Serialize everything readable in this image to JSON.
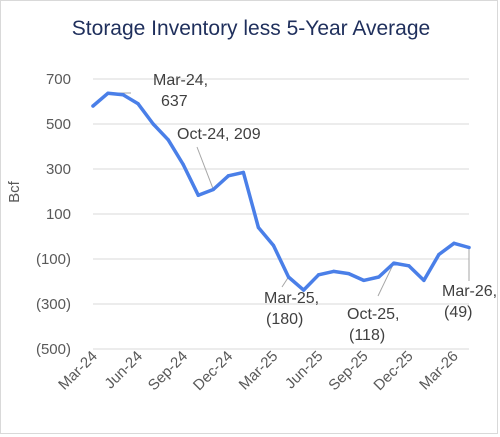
{
  "chart_data": {
    "type": "line",
    "title": "Storage Inventory less 5-Year Average",
    "ylabel": "Bcf",
    "xlabel": "",
    "ylim": [
      -500,
      700
    ],
    "yticks": [
      {
        "value": 700,
        "label": "700"
      },
      {
        "value": 500,
        "label": "500"
      },
      {
        "value": 300,
        "label": "300"
      },
      {
        "value": 100,
        "label": "100"
      },
      {
        "value": -100,
        "label": "(100)"
      },
      {
        "value": -300,
        "label": "(300)"
      },
      {
        "value": -500,
        "label": "(500)"
      }
    ],
    "xticks": [
      {
        "index": 0,
        "label": "Mar-24"
      },
      {
        "index": 3,
        "label": "Jun-24"
      },
      {
        "index": 6,
        "label": "Sep-24"
      },
      {
        "index": 9,
        "label": "Dec-24"
      },
      {
        "index": 12,
        "label": "Mar-25"
      },
      {
        "index": 15,
        "label": "Jun-25"
      },
      {
        "index": 18,
        "label": "Sep-25"
      },
      {
        "index": 21,
        "label": "Dec-25"
      },
      {
        "index": 24,
        "label": "Mar-26"
      }
    ],
    "grid": true,
    "legend": "none",
    "line_color": "#4a7fe8",
    "series": [
      {
        "values": [
          580,
          637,
          630,
          590,
          500,
          430,
          320,
          183,
          209,
          270,
          285,
          40,
          -40,
          -180,
          -238,
          -170,
          -155,
          -165,
          -195,
          -180,
          -118,
          -130,
          -195,
          -80,
          -30,
          -49
        ]
      }
    ],
    "annotations": [
      {
        "index": 1,
        "line1": "Mar-24,",
        "line2": "637"
      },
      {
        "index": 8,
        "line1": "Oct-24,  209",
        "line2": ""
      },
      {
        "index": 13,
        "line1": "Mar-25,",
        "line2": "(180)"
      },
      {
        "index": 20,
        "line1": "Oct-25,",
        "line2": "(118)"
      },
      {
        "index": 25,
        "line1": "Mar-26,",
        "line2": "(49)"
      }
    ]
  }
}
